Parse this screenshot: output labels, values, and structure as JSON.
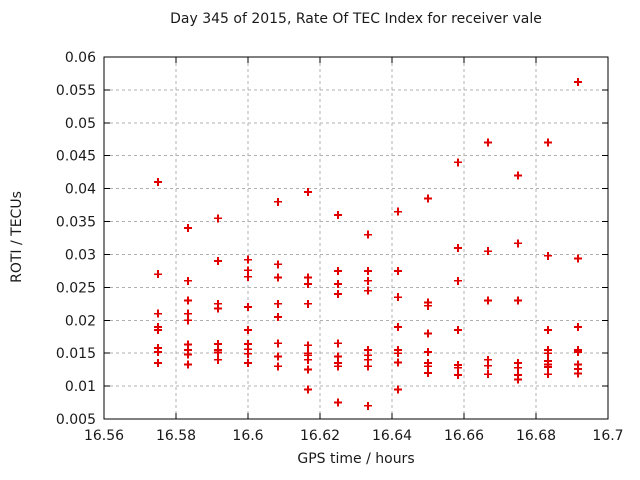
{
  "colors": {
    "marker": "#e00000",
    "grid": "#b0b0b0",
    "axis": "#000000",
    "text": "#1a1a1a",
    "background": "#ffffff"
  },
  "chart_data": {
    "type": "scatter",
    "title": "Day 345 of 2015, Rate Of TEC Index for receiver vale",
    "xlabel": "GPS time / hours",
    "ylabel": "ROTI / TECUs",
    "xlim": [
      16.56,
      16.7
    ],
    "ylim": [
      0.005,
      0.06
    ],
    "xticks": [
      16.56,
      16.58,
      16.6,
      16.62,
      16.64,
      16.66,
      16.68,
      16.7
    ],
    "xtick_labels": [
      "16.56",
      "16.58",
      "16.6",
      "16.62",
      "16.64",
      "16.66",
      "16.68",
      "16.7"
    ],
    "yticks": [
      0.005,
      0.01,
      0.015,
      0.02,
      0.025,
      0.03,
      0.035,
      0.04,
      0.045,
      0.05,
      0.055,
      0.06
    ],
    "ytick_labels": [
      "0.005",
      "0.01",
      "0.015",
      "0.02",
      "0.025",
      "0.03",
      "0.035",
      "0.04",
      "0.045",
      "0.05",
      "0.055",
      "0.06"
    ],
    "grid": true,
    "legend": "none",
    "marker": {
      "shape": "plus",
      "size": 9
    },
    "points": [
      [
        16.575,
        0.041
      ],
      [
        16.575,
        0.027
      ],
      [
        16.575,
        0.021
      ],
      [
        16.575,
        0.019
      ],
      [
        16.575,
        0.0185
      ],
      [
        16.575,
        0.0158
      ],
      [
        16.575,
        0.0152
      ],
      [
        16.575,
        0.0135
      ],
      [
        16.5833,
        0.034
      ],
      [
        16.5833,
        0.026
      ],
      [
        16.5833,
        0.023
      ],
      [
        16.5833,
        0.021
      ],
      [
        16.5833,
        0.02
      ],
      [
        16.5833,
        0.0163
      ],
      [
        16.5833,
        0.0155
      ],
      [
        16.5833,
        0.0148
      ],
      [
        16.5833,
        0.0133
      ],
      [
        16.5917,
        0.0355
      ],
      [
        16.5917,
        0.029
      ],
      [
        16.5917,
        0.0225
      ],
      [
        16.5917,
        0.0218
      ],
      [
        16.5917,
        0.0164
      ],
      [
        16.5917,
        0.0155
      ],
      [
        16.5917,
        0.0151
      ],
      [
        16.5917,
        0.014
      ],
      [
        16.6,
        0.0292
      ],
      [
        16.6,
        0.0276
      ],
      [
        16.6,
        0.0266
      ],
      [
        16.6,
        0.022
      ],
      [
        16.6,
        0.0185
      ],
      [
        16.6,
        0.0164
      ],
      [
        16.6,
        0.0156
      ],
      [
        16.6,
        0.0149
      ],
      [
        16.6,
        0.0135
      ],
      [
        16.6083,
        0.038
      ],
      [
        16.6083,
        0.0285
      ],
      [
        16.6083,
        0.0265
      ],
      [
        16.6083,
        0.0225
      ],
      [
        16.6083,
        0.0205
      ],
      [
        16.6083,
        0.0165
      ],
      [
        16.6083,
        0.0145
      ],
      [
        16.6083,
        0.013
      ],
      [
        16.6167,
        0.0395
      ],
      [
        16.6167,
        0.0265
      ],
      [
        16.6167,
        0.0255
      ],
      [
        16.6167,
        0.0225
      ],
      [
        16.6167,
        0.0162
      ],
      [
        16.6167,
        0.015
      ],
      [
        16.6167,
        0.0147
      ],
      [
        16.6167,
        0.014
      ],
      [
        16.6167,
        0.0125
      ],
      [
        16.6167,
        0.0095
      ],
      [
        16.625,
        0.036
      ],
      [
        16.625,
        0.0275
      ],
      [
        16.625,
        0.0255
      ],
      [
        16.625,
        0.024
      ],
      [
        16.625,
        0.0165
      ],
      [
        16.625,
        0.0145
      ],
      [
        16.625,
        0.0135
      ],
      [
        16.625,
        0.013
      ],
      [
        16.625,
        0.0075
      ],
      [
        16.6333,
        0.033
      ],
      [
        16.6333,
        0.0275
      ],
      [
        16.6333,
        0.026
      ],
      [
        16.6333,
        0.0245
      ],
      [
        16.6333,
        0.0155
      ],
      [
        16.6333,
        0.0147
      ],
      [
        16.6333,
        0.014
      ],
      [
        16.6333,
        0.013
      ],
      [
        16.6333,
        0.007
      ],
      [
        16.6417,
        0.0365
      ],
      [
        16.6417,
        0.0275
      ],
      [
        16.6417,
        0.0235
      ],
      [
        16.6417,
        0.019
      ],
      [
        16.6417,
        0.0155
      ],
      [
        16.6417,
        0.015
      ],
      [
        16.6417,
        0.0136
      ],
      [
        16.6417,
        0.0095
      ],
      [
        16.65,
        0.0385
      ],
      [
        16.65,
        0.0227
      ],
      [
        16.65,
        0.0222
      ],
      [
        16.65,
        0.018
      ],
      [
        16.65,
        0.0152
      ],
      [
        16.65,
        0.0135
      ],
      [
        16.65,
        0.013
      ],
      [
        16.65,
        0.012
      ],
      [
        16.6583,
        0.044
      ],
      [
        16.6583,
        0.031
      ],
      [
        16.6583,
        0.026
      ],
      [
        16.6583,
        0.0185
      ],
      [
        16.6583,
        0.0132
      ],
      [
        16.6583,
        0.0128
      ],
      [
        16.6583,
        0.0117
      ],
      [
        16.6667,
        0.047
      ],
      [
        16.6667,
        0.0305
      ],
      [
        16.6667,
        0.023
      ],
      [
        16.6667,
        0.014
      ],
      [
        16.6667,
        0.0131
      ],
      [
        16.6667,
        0.0118
      ],
      [
        16.675,
        0.042
      ],
      [
        16.675,
        0.0317
      ],
      [
        16.675,
        0.023
      ],
      [
        16.675,
        0.0135
      ],
      [
        16.675,
        0.0128
      ],
      [
        16.675,
        0.0117
      ],
      [
        16.675,
        0.011
      ],
      [
        16.6833,
        0.047
      ],
      [
        16.6833,
        0.0298
      ],
      [
        16.6833,
        0.0185
      ],
      [
        16.6833,
        0.0155
      ],
      [
        16.6833,
        0.015
      ],
      [
        16.6833,
        0.0138
      ],
      [
        16.6833,
        0.0133
      ],
      [
        16.6833,
        0.0129
      ],
      [
        16.6833,
        0.0118
      ],
      [
        16.6917,
        0.0562
      ],
      [
        16.6917,
        0.0294
      ],
      [
        16.6917,
        0.019
      ],
      [
        16.6917,
        0.0155
      ],
      [
        16.6917,
        0.0152
      ],
      [
        16.6917,
        0.0133
      ],
      [
        16.6917,
        0.0126
      ],
      [
        16.6917,
        0.0119
      ]
    ]
  }
}
